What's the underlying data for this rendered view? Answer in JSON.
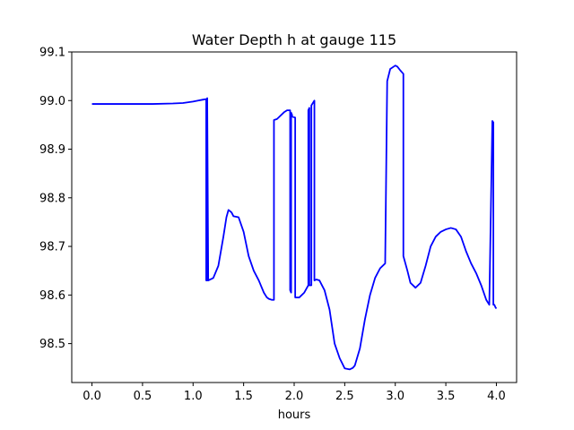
{
  "chart_data": {
    "type": "line",
    "title": "Water Depth h at gauge 115",
    "xlabel": "hours",
    "ylabel": "",
    "xlim": [
      -0.2,
      4.2
    ],
    "ylim": [
      98.42,
      99.1
    ],
    "x_ticks": [
      0.0,
      0.5,
      1.0,
      1.5,
      2.0,
      2.5,
      3.0,
      3.5,
      4.0
    ],
    "x_tick_labels": [
      "0.0",
      "0.5",
      "1.0",
      "1.5",
      "2.0",
      "2.5",
      "3.0",
      "3.5",
      "4.0"
    ],
    "y_ticks": [
      98.5,
      98.6,
      98.7,
      98.8,
      98.9,
      99.0,
      99.1
    ],
    "y_tick_labels": [
      "98.5",
      "98.6",
      "98.7",
      "98.8",
      "98.9",
      "99.0",
      "99.1"
    ],
    "grid": false,
    "series": [
      {
        "color": "#0000ff",
        "x": [
          0.0,
          0.3,
          0.6,
          0.8,
          0.9,
          1.0,
          1.05,
          1.1,
          1.13,
          1.13,
          1.14,
          1.14,
          1.15,
          1.2,
          1.25,
          1.3,
          1.33,
          1.35,
          1.38,
          1.4,
          1.45,
          1.5,
          1.55,
          1.6,
          1.65,
          1.7,
          1.73,
          1.75,
          1.78,
          1.8,
          1.8,
          1.83,
          1.86,
          1.9,
          1.93,
          1.96,
          1.96,
          1.97,
          1.97,
          1.98,
          1.98,
          2.01,
          2.01,
          2.05,
          2.1,
          2.14,
          2.14,
          2.15,
          2.15,
          2.17,
          2.17,
          2.2,
          2.2,
          2.22,
          2.22,
          2.25,
          2.3,
          2.35,
          2.4,
          2.45,
          2.5,
          2.55,
          2.58,
          2.6,
          2.65,
          2.7,
          2.75,
          2.8,
          2.85,
          2.9,
          2.92,
          2.92,
          2.95,
          3.0,
          3.02,
          3.05,
          3.08,
          3.08,
          3.12,
          3.15,
          3.2,
          3.25,
          3.3,
          3.35,
          3.4,
          3.45,
          3.5,
          3.55,
          3.6,
          3.65,
          3.7,
          3.75,
          3.8,
          3.85,
          3.9,
          3.93,
          3.96,
          3.97,
          3.97,
          3.98,
          3.99,
          4.0
        ],
        "y": [
          98.993,
          98.993,
          98.993,
          98.994,
          98.995,
          98.998,
          99.0,
          99.002,
          99.003,
          98.63,
          98.63,
          99.005,
          98.63,
          98.635,
          98.66,
          98.72,
          98.76,
          98.775,
          98.77,
          98.762,
          98.76,
          98.73,
          98.68,
          98.65,
          98.63,
          98.605,
          98.595,
          98.592,
          98.59,
          98.59,
          98.96,
          98.962,
          98.968,
          98.976,
          98.98,
          98.98,
          98.61,
          98.605,
          98.975,
          98.97,
          98.967,
          98.965,
          98.595,
          98.595,
          98.605,
          98.62,
          98.98,
          98.985,
          98.62,
          98.62,
          98.99,
          99.0,
          98.63,
          98.632,
          98.632,
          98.63,
          98.61,
          98.57,
          98.5,
          98.47,
          98.449,
          98.447,
          98.45,
          98.455,
          98.49,
          98.55,
          98.6,
          98.635,
          98.655,
          98.665,
          99.04,
          99.04,
          99.065,
          99.072,
          99.07,
          99.062,
          99.055,
          98.68,
          98.65,
          98.625,
          98.615,
          98.625,
          98.66,
          98.7,
          98.72,
          98.73,
          98.735,
          98.738,
          98.735,
          98.72,
          98.69,
          98.665,
          98.645,
          98.62,
          98.59,
          98.58,
          98.958,
          98.955,
          98.58,
          98.58,
          98.575,
          98.572
        ]
      }
    ]
  }
}
